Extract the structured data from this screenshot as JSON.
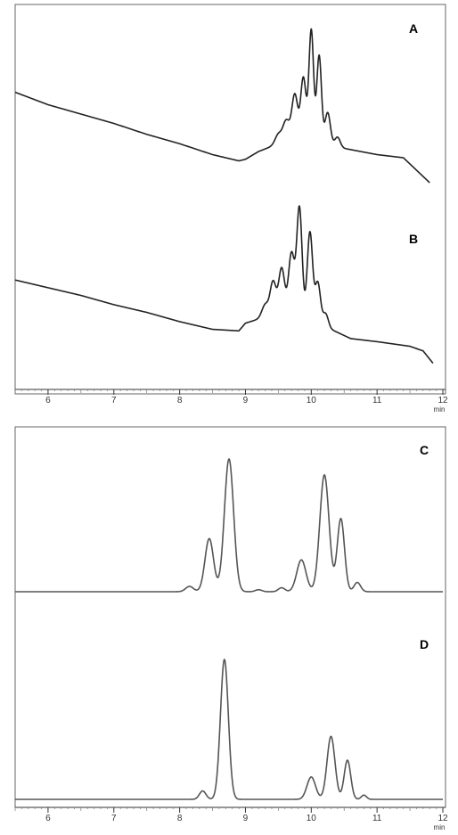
{
  "chart_data": [
    {
      "type": "line",
      "panels": [
        {
          "label": "A",
          "baseline": [
            [
              5.5,
              0.58
            ],
            [
              6.0,
              0.5
            ],
            [
              6.5,
              0.44
            ],
            [
              7.0,
              0.38
            ],
            [
              7.5,
              0.31
            ],
            [
              8.0,
              0.25
            ],
            [
              8.5,
              0.18
            ],
            [
              8.9,
              0.14
            ],
            [
              9.0,
              0.15
            ],
            [
              9.2,
              0.2
            ],
            [
              9.5,
              0.25
            ],
            [
              10.0,
              0.28
            ],
            [
              10.5,
              0.22
            ],
            [
              11.0,
              0.18
            ],
            [
              11.4,
              0.16
            ],
            [
              11.6,
              0.08
            ],
            [
              11.8,
              0.0
            ]
          ],
          "peaks": [
            [
              9.5,
              0.06,
              0.05
            ],
            [
              9.62,
              0.14,
              0.05
            ],
            [
              9.75,
              0.3,
              0.045
            ],
            [
              9.88,
              0.4,
              0.04
            ],
            [
              10.0,
              0.7,
              0.035
            ],
            [
              10.12,
              0.55,
              0.035
            ],
            [
              10.25,
              0.2,
              0.04
            ],
            [
              10.4,
              0.06,
              0.04
            ]
          ]
        },
        {
          "label": "B",
          "baseline": [
            [
              5.5,
              0.6
            ],
            [
              6.0,
              0.55
            ],
            [
              6.5,
              0.5
            ],
            [
              7.0,
              0.44
            ],
            [
              7.5,
              0.39
            ],
            [
              8.0,
              0.33
            ],
            [
              8.5,
              0.28
            ],
            [
              8.9,
              0.27
            ],
            [
              9.0,
              0.32
            ],
            [
              9.3,
              0.36
            ],
            [
              9.6,
              0.38
            ],
            [
              10.0,
              0.36
            ],
            [
              10.3,
              0.28
            ],
            [
              10.6,
              0.22
            ],
            [
              11.0,
              0.2
            ],
            [
              11.5,
              0.17
            ],
            [
              11.7,
              0.14
            ],
            [
              11.85,
              0.06
            ]
          ],
          "peaks": [
            [
              9.3,
              0.08,
              0.05
            ],
            [
              9.42,
              0.22,
              0.045
            ],
            [
              9.55,
              0.3,
              0.045
            ],
            [
              9.7,
              0.4,
              0.045
            ],
            [
              9.82,
              0.7,
              0.04
            ],
            [
              9.98,
              0.55,
              0.04
            ],
            [
              10.1,
              0.25,
              0.04
            ],
            [
              10.22,
              0.08,
              0.04
            ]
          ]
        }
      ],
      "x_axis": {
        "range": [
          5.5,
          12.0
        ],
        "ticks": [
          "6",
          "7",
          "8",
          "9",
          "10",
          "11",
          "12"
        ],
        "unit": "min"
      },
      "grid": false,
      "legend": "none"
    },
    {
      "type": "line",
      "panels": [
        {
          "label": "C",
          "baseline": [
            [
              5.5,
              0.0
            ],
            [
              12.0,
              0.0
            ]
          ],
          "peaks": [
            [
              8.15,
              0.04,
              0.06
            ],
            [
              8.45,
              0.4,
              0.065
            ],
            [
              8.75,
              1.0,
              0.07
            ],
            [
              9.2,
              0.015,
              0.05
            ],
            [
              9.55,
              0.03,
              0.05
            ],
            [
              9.85,
              0.24,
              0.07
            ],
            [
              10.2,
              0.88,
              0.07
            ],
            [
              10.45,
              0.55,
              0.055
            ],
            [
              10.7,
              0.07,
              0.05
            ]
          ]
        },
        {
          "label": "D",
          "baseline": [
            [
              5.5,
              0.0
            ],
            [
              12.0,
              0.0
            ]
          ],
          "peaks": [
            [
              8.35,
              0.06,
              0.05
            ],
            [
              8.68,
              1.0,
              0.06
            ],
            [
              10.0,
              0.16,
              0.065
            ],
            [
              10.3,
              0.45,
              0.06
            ],
            [
              10.55,
              0.28,
              0.05
            ],
            [
              10.8,
              0.03,
              0.04
            ]
          ]
        }
      ],
      "x_axis": {
        "range": [
          5.5,
          12.0
        ],
        "ticks": [
          "6",
          "7",
          "8",
          "9",
          "10",
          "11",
          "12"
        ],
        "unit": "min"
      },
      "grid": false,
      "legend": "none"
    }
  ]
}
